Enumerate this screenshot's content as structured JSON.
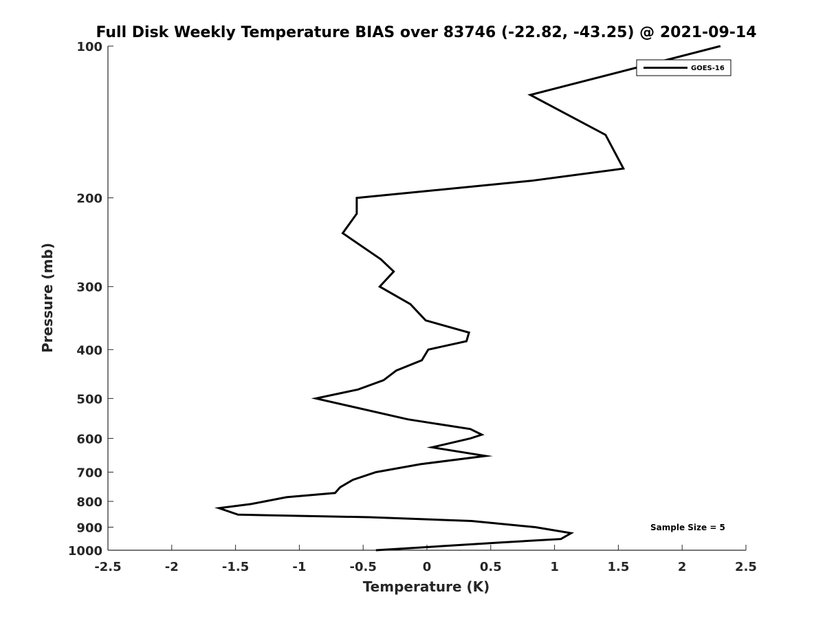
{
  "chart_data": {
    "type": "line",
    "title": "Full Disk Weekly Temperature BIAS over 83746 (-22.82, -43.25) @ 2021-09-14",
    "xlabel": "Temperature (K)",
    "ylabel": "Pressure (mb)",
    "xlim": [
      -2.5,
      2.5
    ],
    "ylim": [
      1000,
      100
    ],
    "yscale": "log",
    "y_reversed": true,
    "xticks": [
      -2.5,
      -2,
      -1.5,
      -1,
      -0.5,
      0,
      0.5,
      1,
      1.5,
      2,
      2.5
    ],
    "xtick_labels": [
      "-2.5",
      "-2",
      "-1.5",
      "-1",
      "-0.5",
      "0",
      "0.5",
      "1",
      "1.5",
      "2",
      "2.5"
    ],
    "yticks": [
      100,
      200,
      300,
      400,
      500,
      600,
      700,
      800,
      900,
      1000
    ],
    "ytick_labels": [
      "100",
      "200",
      "300",
      "400",
      "500",
      "600",
      "700",
      "800",
      "900",
      "1000"
    ],
    "grid": false,
    "legend_position": "top-right",
    "annotation": "Sample Size = 5",
    "line_color": "#000000",
    "series": [
      {
        "name": "GOES-16",
        "points": [
          {
            "x": 2.3,
            "y": 100
          },
          {
            "x": 0.81,
            "y": 125
          },
          {
            "x": 1.4,
            "y": 150
          },
          {
            "x": 1.54,
            "y": 175
          },
          {
            "x": 0.82,
            "y": 185
          },
          {
            "x": -0.55,
            "y": 200
          },
          {
            "x": -0.55,
            "y": 215
          },
          {
            "x": -0.66,
            "y": 235
          },
          {
            "x": -0.36,
            "y": 265
          },
          {
            "x": -0.26,
            "y": 280
          },
          {
            "x": -0.37,
            "y": 300
          },
          {
            "x": -0.13,
            "y": 325
          },
          {
            "x": -0.01,
            "y": 350
          },
          {
            "x": 0.33,
            "y": 370
          },
          {
            "x": 0.31,
            "y": 385
          },
          {
            "x": 0.01,
            "y": 400
          },
          {
            "x": -0.04,
            "y": 420
          },
          {
            "x": -0.24,
            "y": 440
          },
          {
            "x": -0.34,
            "y": 460
          },
          {
            "x": -0.54,
            "y": 480
          },
          {
            "x": -0.87,
            "y": 500
          },
          {
            "x": -0.15,
            "y": 550
          },
          {
            "x": 0.34,
            "y": 575
          },
          {
            "x": 0.43,
            "y": 590
          },
          {
            "x": 0.34,
            "y": 600
          },
          {
            "x": 0.04,
            "y": 625
          },
          {
            "x": 0.46,
            "y": 650
          },
          {
            "x": -0.05,
            "y": 675
          },
          {
            "x": -0.4,
            "y": 700
          },
          {
            "x": -0.58,
            "y": 725
          },
          {
            "x": -0.68,
            "y": 750
          },
          {
            "x": -0.72,
            "y": 770
          },
          {
            "x": -1.1,
            "y": 785
          },
          {
            "x": -1.38,
            "y": 810
          },
          {
            "x": -1.63,
            "y": 825
          },
          {
            "x": -1.48,
            "y": 850
          },
          {
            "x": -0.45,
            "y": 860
          },
          {
            "x": 0.35,
            "y": 875
          },
          {
            "x": 0.85,
            "y": 900
          },
          {
            "x": 1.13,
            "y": 925
          },
          {
            "x": 1.05,
            "y": 950
          },
          {
            "x": 0.58,
            "y": 965
          },
          {
            "x": 0.02,
            "y": 985
          },
          {
            "x": -0.4,
            "y": 1000
          }
        ]
      }
    ]
  }
}
